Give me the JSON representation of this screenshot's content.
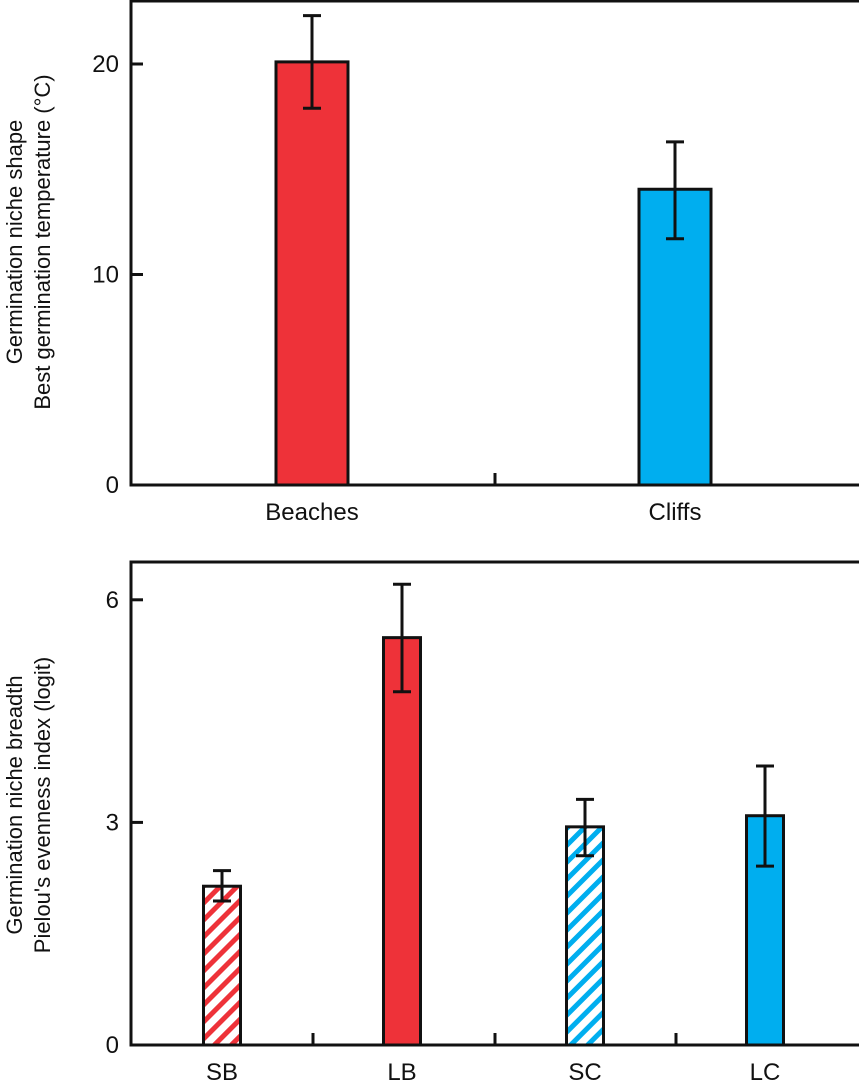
{
  "chart_data": [
    {
      "type": "bar",
      "ylabel_line1": "Germination niche shape",
      "ylabel_line2": "Best germination temperature (°C)",
      "xlabel": "",
      "categories": [
        "Beaches",
        "Cliffs"
      ],
      "values": [
        20.1,
        14.05
      ],
      "error_upper": [
        22.3,
        16.3
      ],
      "error_lower": [
        17.9,
        11.7
      ],
      "colors": [
        "#ee3239",
        "#00aeef"
      ],
      "hatched": [
        false,
        false
      ],
      "yticks": [
        0,
        10,
        20
      ],
      "ylim": [
        0,
        23
      ],
      "grid": false
    },
    {
      "type": "bar",
      "ylabel_line1": "Germination niche breadth",
      "ylabel_line2": "Pielou's evenness index (logit)",
      "xlabel": "",
      "categories": [
        "SB",
        "LB",
        "SC",
        "LC"
      ],
      "values": [
        2.14,
        5.49,
        2.94,
        3.09
      ],
      "error_upper": [
        2.35,
        6.21,
        3.31,
        3.76
      ],
      "error_lower": [
        1.94,
        4.76,
        2.55,
        2.41
      ],
      "colors": [
        "#ee3239",
        "#ee3239",
        "#00aeef",
        "#00aeef"
      ],
      "hatched": [
        true,
        false,
        true,
        false
      ],
      "yticks": [
        0,
        3,
        6
      ],
      "ylim": [
        0,
        6.5
      ],
      "grid": false
    }
  ]
}
